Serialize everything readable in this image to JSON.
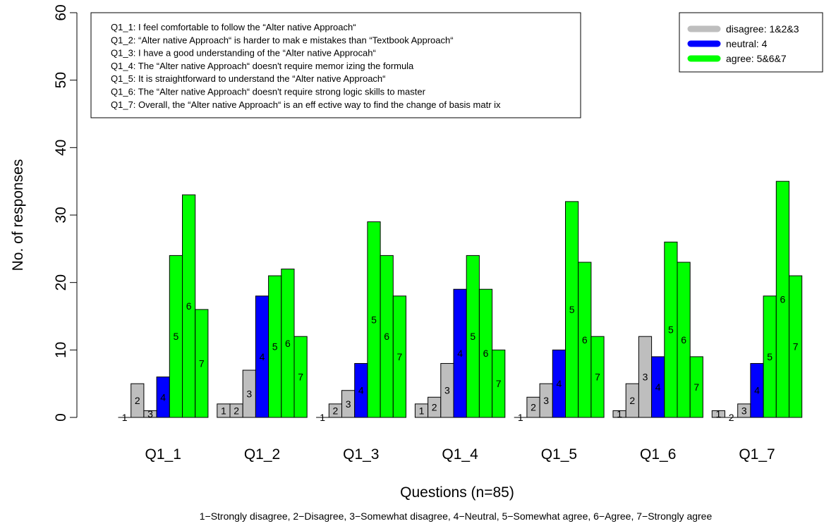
{
  "chart_data": {
    "type": "bar",
    "xlabel": "Questions (n=85)",
    "ylabel": "No. of responses",
    "caption": "1−Strongly disagree, 2−Disagree, 3−Somewhat disagree, 4−Neutral, 5−Somewhat agree, 6−Agree, 7−Strongly agree",
    "ylim": [
      0,
      60
    ],
    "yticks": [
      0,
      10,
      20,
      30,
      40,
      50,
      60
    ],
    "categories": [
      "Q1_1",
      "Q1_2",
      "Q1_3",
      "Q1_4",
      "Q1_5",
      "Q1_6",
      "Q1_7"
    ],
    "bar_labels": [
      "1",
      "2",
      "3",
      "4",
      "5",
      "6",
      "7"
    ],
    "series": [
      {
        "label": "1",
        "group": "disagree",
        "values": [
          0,
          2,
          0,
          2,
          0,
          1,
          1
        ]
      },
      {
        "label": "2",
        "group": "disagree",
        "values": [
          5,
          2,
          2,
          3,
          3,
          5,
          0
        ]
      },
      {
        "label": "3",
        "group": "disagree",
        "values": [
          1,
          7,
          4,
          8,
          5,
          12,
          2
        ]
      },
      {
        "label": "4",
        "group": "neutral",
        "values": [
          6,
          18,
          8,
          19,
          10,
          9,
          8
        ]
      },
      {
        "label": "5",
        "group": "agree",
        "values": [
          24,
          21,
          29,
          24,
          32,
          26,
          18
        ]
      },
      {
        "label": "6",
        "group": "agree",
        "values": [
          33,
          22,
          24,
          19,
          23,
          23,
          35
        ]
      },
      {
        "label": "7",
        "group": "agree",
        "values": [
          16,
          12,
          18,
          10,
          12,
          9,
          21
        ]
      }
    ],
    "legend": {
      "placement": "top-right",
      "entries": [
        {
          "key": "disagree",
          "label": "disagree: 1&2&3",
          "color": "#bebebe"
        },
        {
          "key": "neutral",
          "label": "neutral: 4",
          "color": "#0000ff"
        },
        {
          "key": "agree",
          "label": "agree: 5&6&7",
          "color": "#00ff00"
        }
      ]
    },
    "question_legend": {
      "placement": "top-left",
      "items": [
        "Q1_1: I feel comfortable to follow the “Alter native  Approach“",
        "Q1_2: “Alter native  Approach“ is harder to mak e mistakes  than “Textbook Approach“",
        "Q1_3: I have a good understanding of the “Alter native Approcah“",
        "Q1_4: The “Alter native  Approach“ doesn't require memor izing the formula",
        "Q1_5: It is straightforward to understand the “Alter native  Approach“",
        "Q1_6: The “Alter native  Approach“ doesn't require strong logic skills to master",
        "Q1_7: Overall, the “Alter native  Approach“ is an eff ective way to find the change of basis matr ix"
      ]
    },
    "colors": {
      "disagree": "#bebebe",
      "neutral": "#0000ff",
      "agree": "#00ff00",
      "border": "#000000"
    }
  }
}
